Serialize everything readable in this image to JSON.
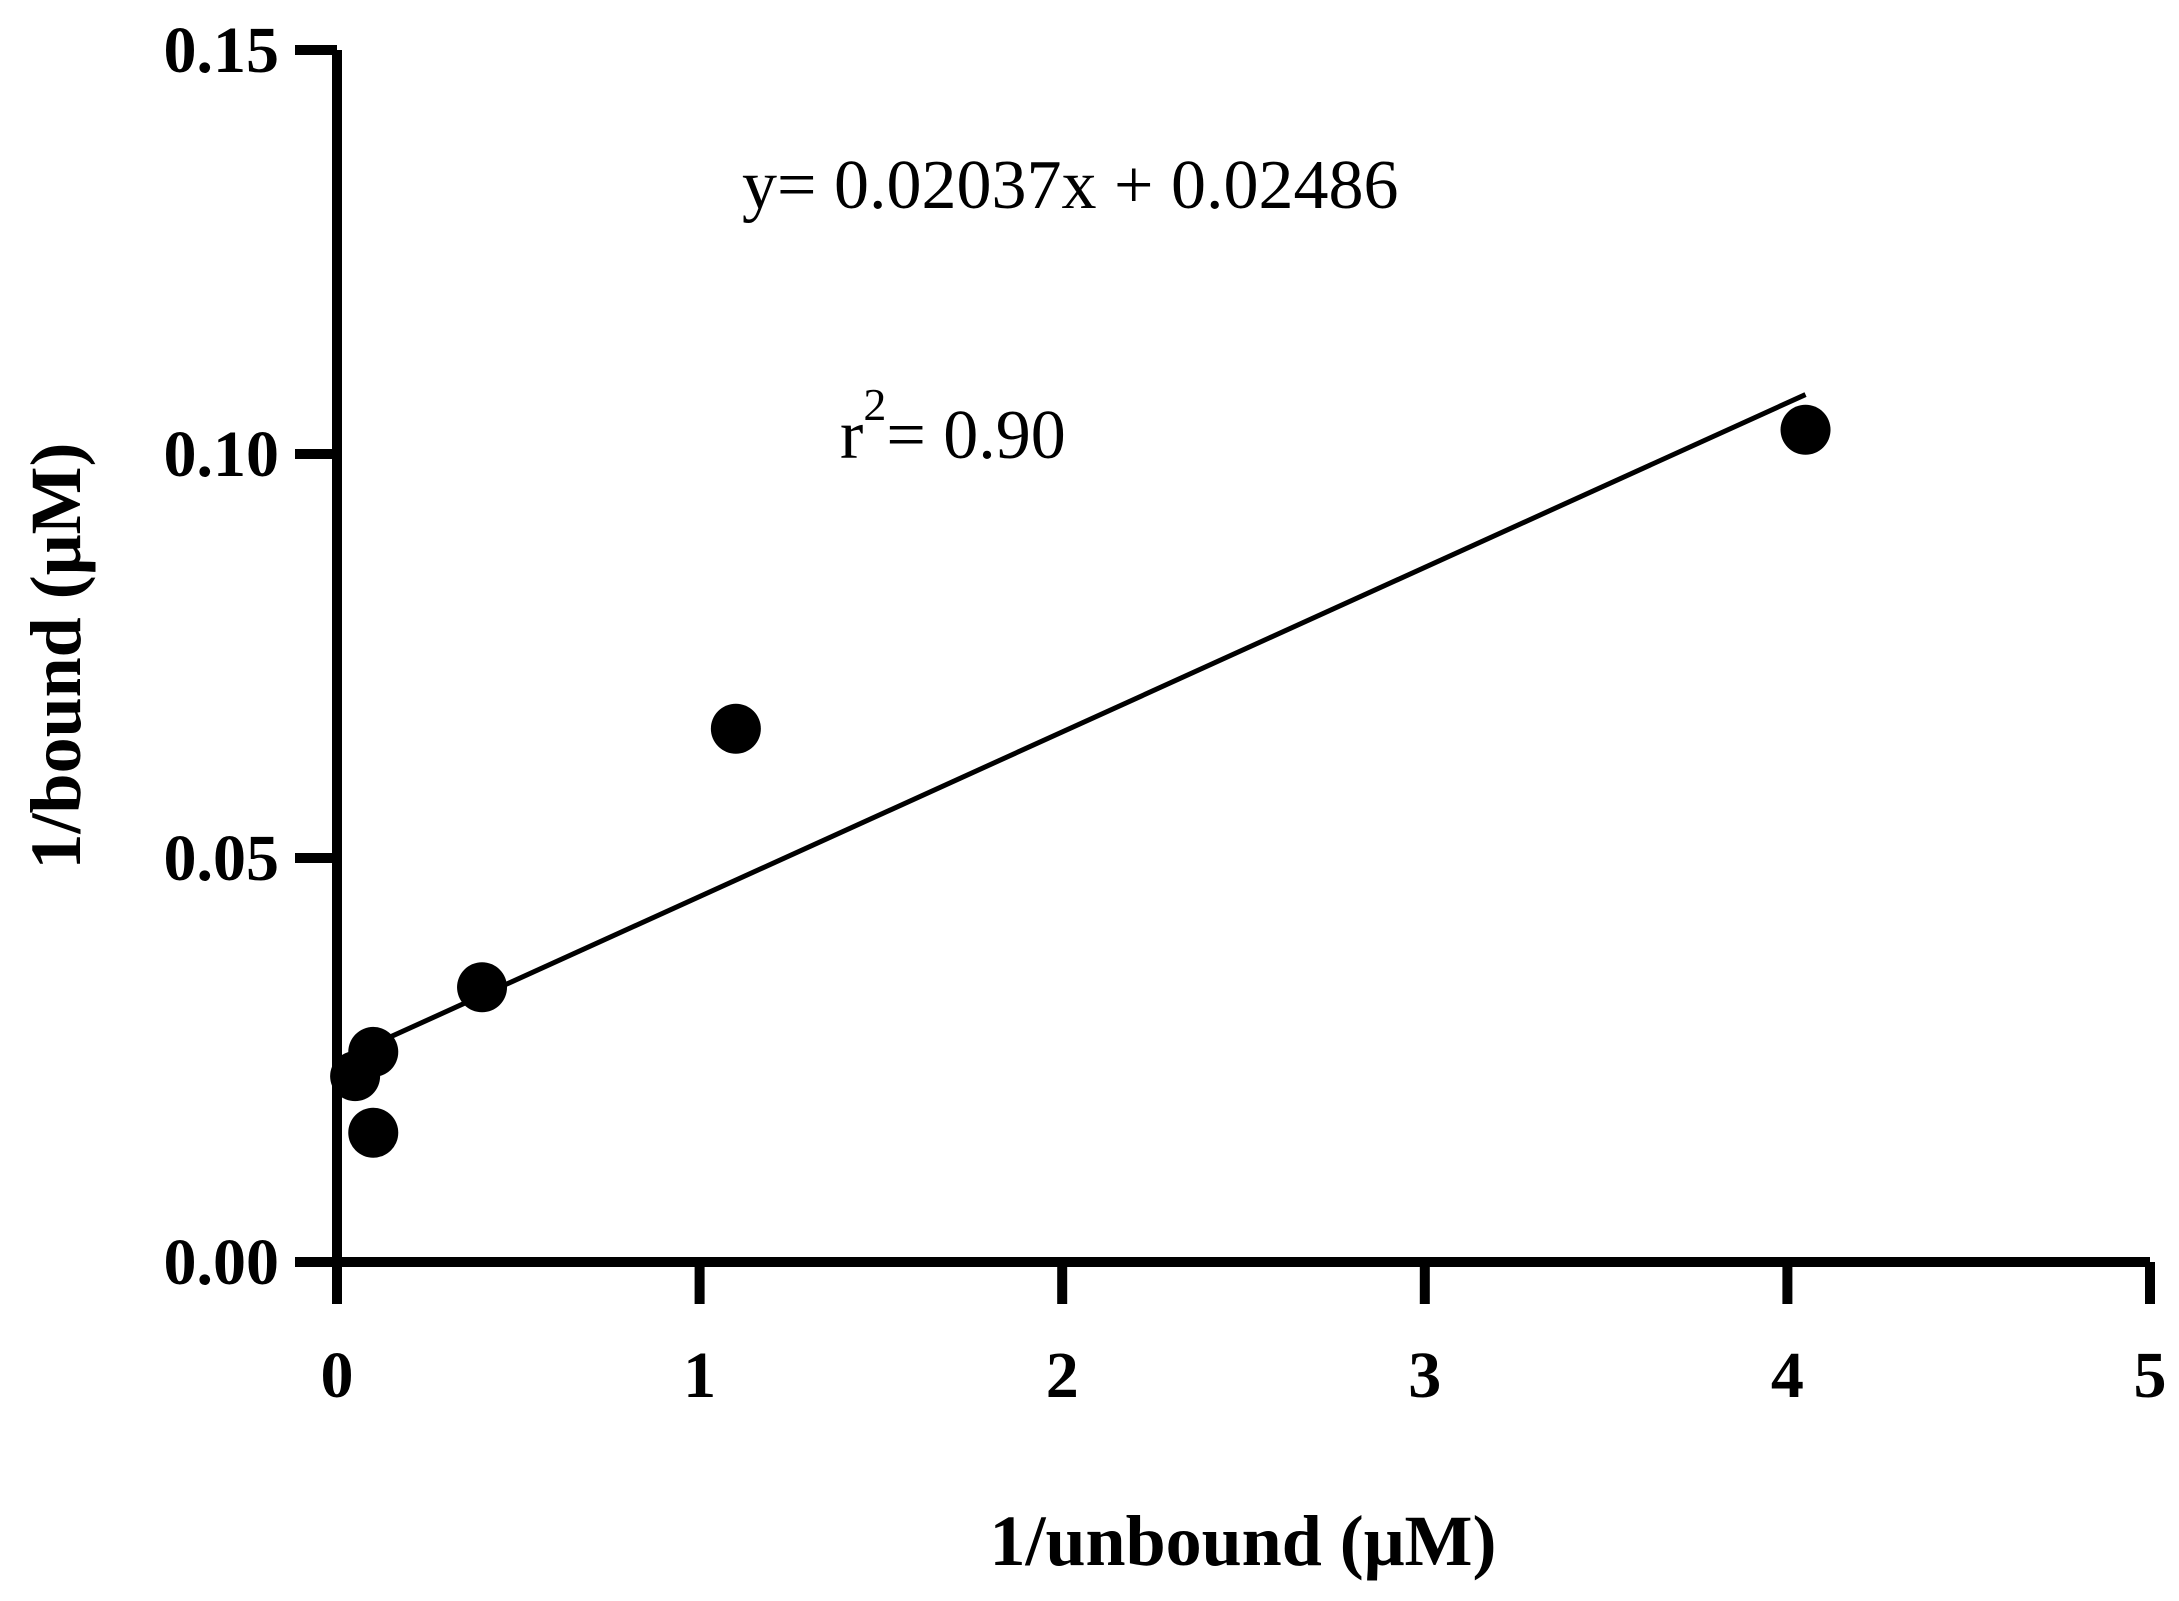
{
  "chart_data": {
    "type": "scatter",
    "xlabel": "1/unbound (μM)",
    "ylabel": "1/bound (μM)",
    "xlim": [
      0,
      5
    ],
    "ylim": [
      0,
      0.15
    ],
    "x_ticks": [
      "0",
      "1",
      "2",
      "3",
      "4",
      "5"
    ],
    "y_ticks": [
      "0.00",
      "0.05",
      "0.10",
      "0.15"
    ],
    "points": [
      {
        "x": 0.05,
        "y": 0.023
      },
      {
        "x": 0.1,
        "y": 0.016
      },
      {
        "x": 0.1,
        "y": 0.026
      },
      {
        "x": 0.4,
        "y": 0.034
      },
      {
        "x": 1.1,
        "y": 0.066
      },
      {
        "x": 4.05,
        "y": 0.103
      }
    ],
    "fit": {
      "slope": 0.02037,
      "intercept": 0.02486,
      "x_range": [
        0.05,
        4.05
      ]
    },
    "annotations": {
      "equation": "y= 0.02037x + 0.02486",
      "r2_prefix": "r",
      "r2_exponent": "2",
      "r2_value": "= 0.90"
    },
    "marker_color": "#000000",
    "line_color": "#000000",
    "grid": false,
    "legend": "none"
  }
}
